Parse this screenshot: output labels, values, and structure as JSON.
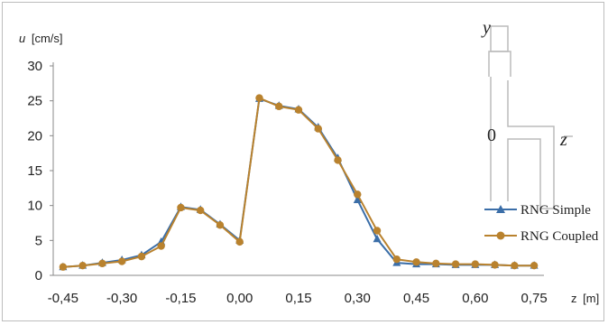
{
  "chart_data": {
    "type": "line",
    "ylabel_var": "u",
    "ylabel_unit": "[cm/s]",
    "xlabel_var": "z",
    "xlabel_unit": "[m]",
    "xlim": [
      -0.475,
      0.775
    ],
    "ylim": [
      0,
      30
    ],
    "yticks": [
      0,
      5,
      10,
      15,
      20,
      25,
      30
    ],
    "xtick_values": [
      -0.45,
      -0.3,
      -0.15,
      0.0,
      0.15,
      0.3,
      0.45,
      0.6,
      0.75
    ],
    "xtick_labels": [
      "-0,45",
      "-0,30",
      "-0,15",
      "0,00",
      "0,15",
      "0,30",
      "0,45",
      "0,60",
      "0,75"
    ],
    "legend_position": "right",
    "grid": false,
    "series": [
      {
        "name": "RNG Simple",
        "color": "#3b6ea8",
        "marker": "triangle",
        "x": [
          -0.45,
          -0.4,
          -0.35,
          -0.3,
          -0.25,
          -0.2,
          -0.15,
          -0.1,
          -0.05,
          0.0,
          0.05,
          0.1,
          0.15,
          0.2,
          0.25,
          0.3,
          0.35,
          0.4,
          0.45,
          0.5,
          0.55,
          0.6,
          0.65,
          0.7,
          0.75
        ],
        "y": [
          1.2,
          1.4,
          1.8,
          2.2,
          2.9,
          4.8,
          9.8,
          9.4,
          7.3,
          5.0,
          25.3,
          24.3,
          23.8,
          21.2,
          16.8,
          10.8,
          5.2,
          1.8,
          1.6,
          1.6,
          1.5,
          1.5,
          1.5,
          1.4,
          1.4
        ]
      },
      {
        "name": "RNG Coupled",
        "color": "#b9822e",
        "marker": "circle",
        "x": [
          -0.45,
          -0.4,
          -0.35,
          -0.3,
          -0.25,
          -0.2,
          -0.15,
          -0.1,
          -0.05,
          0.0,
          0.05,
          0.1,
          0.15,
          0.2,
          0.25,
          0.3,
          0.35,
          0.4,
          0.45,
          0.5,
          0.55,
          0.6,
          0.65,
          0.7,
          0.75
        ],
        "y": [
          1.2,
          1.4,
          1.7,
          2.0,
          2.7,
          4.2,
          9.7,
          9.3,
          7.2,
          4.8,
          25.4,
          24.2,
          23.7,
          21.0,
          16.5,
          11.6,
          6.4,
          2.3,
          1.9,
          1.7,
          1.6,
          1.6,
          1.5,
          1.4,
          1.4
        ]
      }
    ],
    "inset": {
      "y_label": "y",
      "origin_label": "0",
      "z_label": "z"
    }
  }
}
